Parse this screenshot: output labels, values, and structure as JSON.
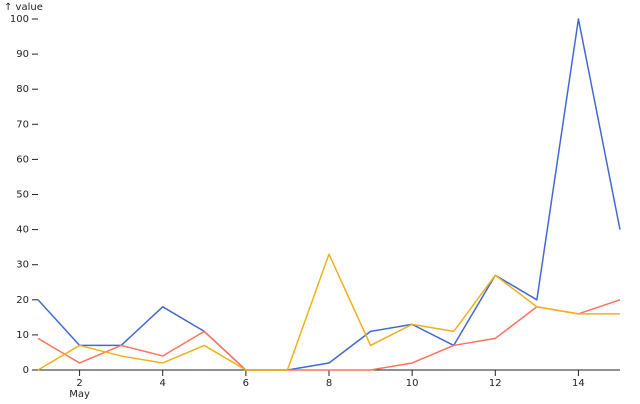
{
  "chart_data": {
    "type": "line",
    "y_label": "↑ value",
    "x_month_label": "May",
    "x": [
      1,
      2,
      3,
      4,
      5,
      6,
      7,
      8,
      9,
      10,
      11,
      12,
      13,
      14,
      15
    ],
    "xlim": [
      1,
      15
    ],
    "xticks": [
      2,
      4,
      6,
      8,
      10,
      12,
      14
    ],
    "ylim": [
      0,
      100
    ],
    "yticks": [
      0,
      10,
      20,
      30,
      40,
      50,
      60,
      70,
      80,
      90,
      100
    ],
    "series": [
      {
        "color": "#4269d0",
        "values": [
          20,
          7,
          7,
          18,
          11,
          0,
          0,
          2,
          11,
          13,
          7,
          27,
          20,
          100,
          40
        ]
      },
      {
        "color": "#ff725c",
        "values": [
          9,
          2,
          7,
          4,
          11,
          0,
          0,
          0,
          0,
          2,
          7,
          9,
          18,
          16,
          20
        ]
      },
      {
        "color": "#efb118",
        "values": [
          0,
          7,
          4,
          2,
          7,
          0,
          0,
          33,
          7,
          13,
          11,
          27,
          18,
          16,
          16
        ]
      }
    ]
  }
}
